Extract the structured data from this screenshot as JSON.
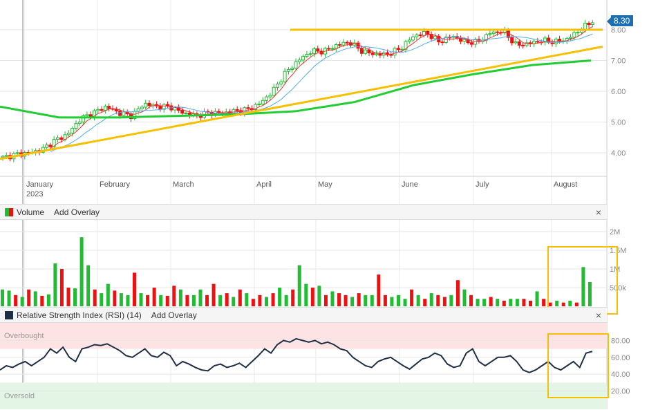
{
  "chart_data": [
    {
      "type": "candlestick",
      "title": "Price",
      "price_axis": {
        "ticks": [
          "4.00",
          "5.00",
          "6.00",
          "7.00",
          "8.00"
        ],
        "range": [
          3.6,
          8.6
        ]
      },
      "months": [
        "January",
        "February",
        "March",
        "April",
        "May",
        "June",
        "July",
        "August"
      ],
      "year": "2023",
      "last_price": "8.30",
      "closes": [
        3.85,
        3.95,
        4.0,
        4.1,
        4.4,
        4.6,
        5.1,
        5.3,
        5.5,
        5.3,
        5.2,
        5.6,
        5.5,
        5.5,
        5.3,
        5.2,
        5.3,
        5.3,
        5.35,
        5.4,
        5.6,
        6.0,
        6.6,
        7.0,
        7.3,
        7.3,
        7.5,
        7.6,
        7.3,
        7.2,
        7.2,
        7.4,
        7.8,
        7.9,
        7.6,
        7.8,
        7.6,
        7.6,
        7.9,
        7.95,
        7.5,
        7.55,
        7.65,
        7.6,
        7.7,
        8.0,
        8.3
      ],
      "resistance_level": 8.0,
      "trendline": [
        3.8,
        7.45
      ],
      "ma_long": [
        5.5,
        5.15,
        5.15,
        5.2,
        5.25,
        5.35,
        5.65,
        6.2,
        6.55,
        6.85,
        7.0
      ]
    },
    {
      "type": "bar",
      "title": "Volume",
      "axis": [
        "2M",
        "1.5M",
        "1M",
        "500k"
      ],
      "unit": "M",
      "values": [
        0.45,
        0.42,
        0.3,
        0.25,
        0.45,
        0.4,
        0.28,
        0.32,
        1.15,
        1.0,
        0.5,
        0.48,
        1.85,
        1.1,
        0.45,
        0.35,
        0.6,
        0.42,
        0.35,
        0.3,
        0.9,
        0.35,
        0.3,
        0.5,
        0.3,
        0.28,
        0.55,
        0.45,
        0.3,
        0.3,
        0.45,
        0.3,
        0.6,
        0.3,
        0.35,
        0.25,
        0.45,
        0.35,
        0.2,
        0.3,
        0.25,
        0.35,
        0.5,
        0.3,
        0.45,
        1.1,
        0.6,
        0.5,
        0.55,
        0.3,
        0.4,
        0.35,
        0.3,
        0.25,
        0.35,
        0.3,
        0.3,
        0.85,
        0.3,
        0.25,
        0.3,
        0.2,
        0.45,
        0.3,
        0.2,
        0.35,
        0.3,
        0.25,
        0.3,
        0.7,
        0.45,
        0.3,
        0.2,
        0.2,
        0.25,
        0.2,
        0.15,
        0.2,
        0.2,
        0.2,
        0.15,
        0.4,
        0.2,
        0.1,
        0.15,
        0.1,
        0.15,
        0.1,
        1.05,
        0.65
      ],
      "up": [
        1,
        1,
        0,
        1,
        0,
        1,
        0,
        1,
        1,
        0,
        0,
        1,
        1,
        1,
        0,
        1,
        1,
        0,
        1,
        1,
        0,
        1,
        0,
        0,
        1,
        0,
        0,
        1,
        0,
        1,
        1,
        0,
        0,
        1,
        0,
        1,
        0,
        1,
        0,
        0,
        1,
        0,
        1,
        1,
        0,
        1,
        1,
        0,
        1,
        0,
        1,
        0,
        0,
        1,
        0,
        1,
        1,
        0,
        0,
        1,
        1,
        1,
        0,
        1,
        0,
        1,
        0,
        0,
        1,
        0,
        1,
        0,
        1,
        1,
        0,
        1,
        0,
        1,
        1,
        0,
        0,
        1,
        0,
        0,
        1,
        0,
        1,
        0,
        1,
        1
      ]
    },
    {
      "type": "line",
      "title": "Relative Strength Index (RSI) (14)",
      "axis": [
        "80.00",
        "60.00",
        "40.00",
        "20.00"
      ],
      "overbought": "Overbought",
      "oversold": "Oversold",
      "range": [
        0,
        100
      ],
      "values": [
        45,
        50,
        48,
        52,
        55,
        50,
        55,
        60,
        70,
        65,
        72,
        60,
        55,
        70,
        72,
        75,
        74,
        76,
        72,
        68,
        62,
        60,
        65,
        70,
        62,
        60,
        66,
        62,
        50,
        55,
        52,
        48,
        45,
        44,
        50,
        52,
        48,
        50,
        53,
        48,
        55,
        62,
        70,
        65,
        75,
        80,
        78,
        82,
        80,
        78,
        80,
        76,
        78,
        75,
        70,
        68,
        60,
        55,
        50,
        48,
        55,
        58,
        60,
        55,
        50,
        46,
        52,
        58,
        60,
        65,
        62,
        52,
        48,
        50,
        65,
        70,
        55,
        50,
        55,
        60,
        60,
        62,
        55,
        45,
        42,
        45,
        50,
        55,
        48,
        45,
        50,
        55,
        48,
        65,
        67
      ]
    }
  ],
  "volume_header": {
    "label": "Volume",
    "add_overlay": "Add Overlay",
    "close": "×"
  },
  "rsi_header": {
    "label": "Relative Strength Index (RSI) (14)",
    "add_overlay": "Add Overlay",
    "close": "×"
  },
  "colors": {
    "up": "#22bb33",
    "down": "#ee1111",
    "highlight": "#f5c000",
    "ma_long": "#22cc33",
    "ma_fast": "#ee3333",
    "ma_slow": "#55aaee"
  }
}
